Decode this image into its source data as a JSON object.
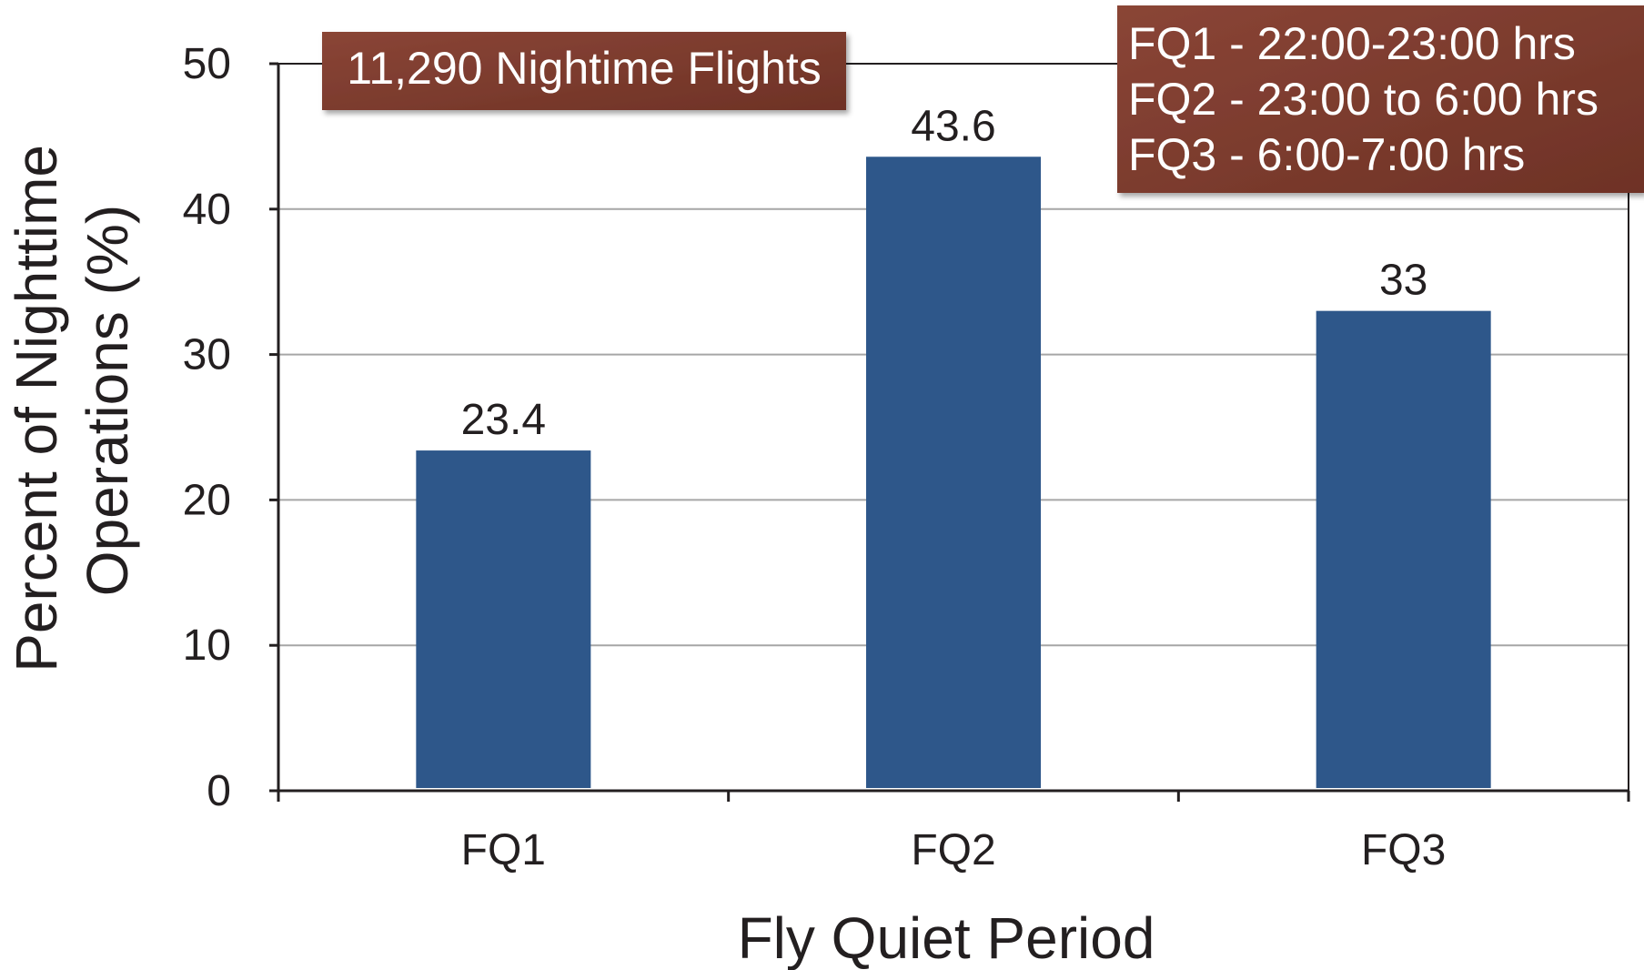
{
  "chart_data": {
    "type": "bar",
    "categories": [
      "FQ1",
      "FQ2",
      "FQ3"
    ],
    "values": [
      23.4,
      43.6,
      33
    ],
    "data_labels": [
      "23.4",
      "43.6",
      "33"
    ],
    "xlabel": "Fly Quiet Period",
    "ylabel_lines": [
      "Percent of Nighttime",
      "Operations (%)"
    ],
    "ylim": [
      0,
      50
    ],
    "yticks": [
      0,
      10,
      20,
      30,
      40,
      50
    ],
    "grid": true,
    "annotations": {
      "total": "11,290 Nightime Flights",
      "legend_lines": [
        "FQ1 - 22:00-23:00 hrs",
        "FQ2 - 23:00 to 6:00 hrs",
        "FQ3 - 6:00-7:00 hrs"
      ]
    },
    "colors": {
      "bar": "#2e578a",
      "annotation_box": "#7a3a2c",
      "grid": "#a6a6a6",
      "axis": "#231f20"
    }
  }
}
